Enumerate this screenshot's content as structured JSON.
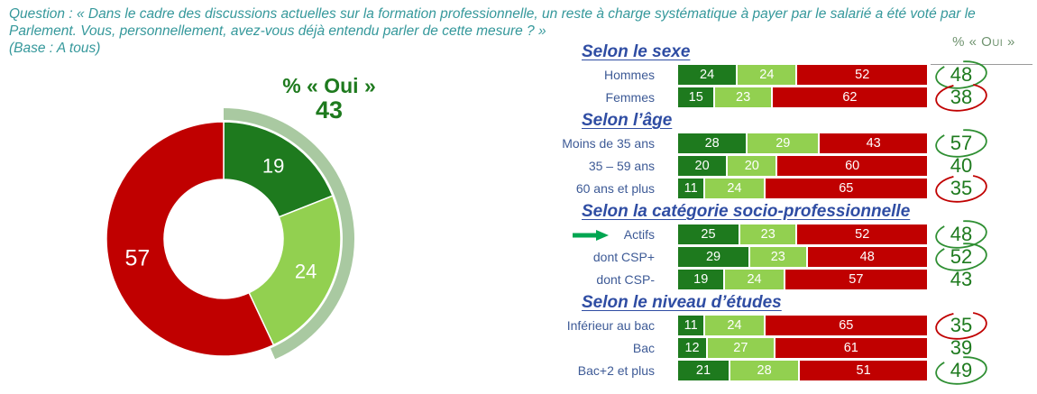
{
  "question": {
    "lines": [
      "Question : « Dans le cadre des discussions actuelles sur la formation professionnelle, un reste à charge systématique à payer par le salarié a été voté par le",
      "Parlement. Vous, personnellement, avez-vous déjà entendu parler de cette mesure ? »",
      "(Base : A tous)"
    ]
  },
  "colors": {
    "yes_dark_green": "#1E7A1E",
    "yes_light_green": "#92D050",
    "no_red": "#C00000",
    "highlight_arc_sage": "#A9C9A1",
    "question_teal": "#35989B",
    "section_header_blue": "#2F4DA3",
    "row_label_blue": "#3D5A96",
    "oui_number_green": "#1E7A1E",
    "green_circle": "#2F8F33",
    "red_circle": "#C00000",
    "arrow_green": "#00A651",
    "divider_gray": "#9A9A9A",
    "oui_column_header_green": "#6F936F"
  },
  "chart_data": [
    {
      "type": "pie",
      "subtype": "donut",
      "title": "% « Oui »",
      "total_label": "43",
      "values": [
        19,
        24,
        57
      ],
      "data_labels": [
        "19",
        "24",
        "57"
      ],
      "slice_colors": [
        "#1E7A1E",
        "#92D050",
        "#C00000"
      ],
      "outer_highlight_arc": {
        "percent": 43,
        "color": "#A9C9A1"
      },
      "start_angle_deg": 0,
      "direction": "clockwise"
    },
    {
      "type": "bar",
      "subtype": "horizontal-stacked",
      "stack_colors": [
        "#1E7A1E",
        "#92D050",
        "#C00000"
      ],
      "axis_max": 100,
      "column_header": "% « Oui »",
      "sections": [
        {
          "title": "Selon le sexe",
          "rows": [
            {
              "label": "Hommes",
              "values": [
                24,
                24,
                52
              ],
              "oui": "48",
              "circle": "green",
              "arrow": false
            },
            {
              "label": "Femmes",
              "values": [
                15,
                23,
                62
              ],
              "oui": "38",
              "circle": "red",
              "arrow": false
            }
          ]
        },
        {
          "title": "Selon l’âge",
          "rows": [
            {
              "label": "Moins de 35 ans",
              "values": [
                28,
                29,
                43
              ],
              "oui": "57",
              "circle": "green",
              "arrow": false
            },
            {
              "label": "35 – 59 ans",
              "values": [
                20,
                20,
                60
              ],
              "oui": "40",
              "circle": null,
              "arrow": false
            },
            {
              "label": "60 ans et plus",
              "values": [
                11,
                24,
                65
              ],
              "oui": "35",
              "circle": "red",
              "arrow": false
            }
          ]
        },
        {
          "title": "Selon la catégorie socio-professionnelle",
          "rows": [
            {
              "label": "Actifs",
              "values": [
                25,
                23,
                52
              ],
              "oui": "48",
              "circle": "green",
              "arrow": true
            },
            {
              "label": "dont CSP+",
              "values": [
                29,
                23,
                48
              ],
              "oui": "52",
              "circle": "green",
              "arrow": false
            },
            {
              "label": "dont CSP-",
              "values": [
                19,
                24,
                57
              ],
              "oui": "43",
              "circle": null,
              "arrow": false
            }
          ]
        },
        {
          "title": "Selon le niveau d’études",
          "rows": [
            {
              "label": "Inférieur au bac",
              "values": [
                11,
                24,
                65
              ],
              "oui": "35",
              "circle": "red",
              "arrow": false
            },
            {
              "label": "Bac",
              "values": [
                12,
                27,
                61
              ],
              "oui": "39",
              "circle": null,
              "arrow": false
            },
            {
              "label": "Bac+2 et plus",
              "values": [
                21,
                28,
                51
              ],
              "oui": "49",
              "circle": "green",
              "arrow": false
            }
          ]
        }
      ]
    }
  ]
}
